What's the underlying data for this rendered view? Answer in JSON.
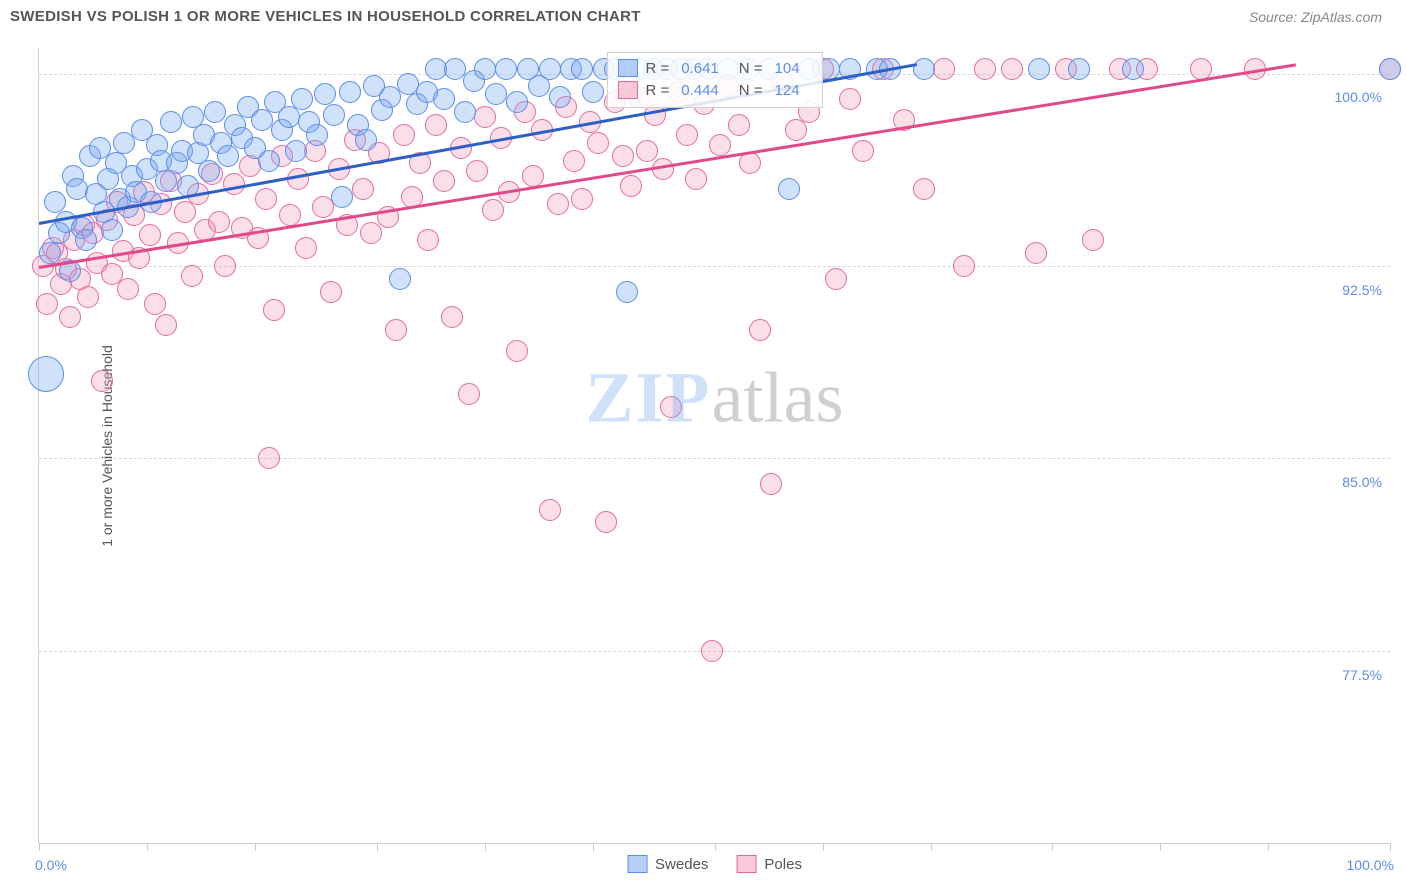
{
  "header": {
    "title": "SWEDISH VS POLISH 1 OR MORE VEHICLES IN HOUSEHOLD CORRELATION CHART",
    "source_prefix": "Source: ",
    "source_link": "ZipAtlas.com"
  },
  "chart": {
    "type": "scatter",
    "ylabel": "1 or more Vehicles in Household",
    "background_color": "#ffffff",
    "grid_color": "#d8d8d8",
    "xlim": [
      0,
      100
    ],
    "ylim": [
      70,
      101
    ],
    "yticks": [
      {
        "value": 100.0,
        "label": "100.0%"
      },
      {
        "value": 92.5,
        "label": "92.5%"
      },
      {
        "value": 85.0,
        "label": "85.0%"
      },
      {
        "value": 77.5,
        "label": "77.5%"
      }
    ],
    "xticks_minor": [
      0,
      8,
      16,
      25,
      33,
      41,
      50,
      58,
      66,
      75,
      83,
      91,
      100
    ],
    "x_range_labels": {
      "left": "0.0%",
      "right": "100.0%"
    },
    "marker_radius": 11,
    "watermark": {
      "part1": "ZIP",
      "part2": "atlas"
    },
    "series": {
      "swedes": {
        "label": "Swedes",
        "fill_color": "#78aaf0",
        "stroke_color": "#5b8def",
        "R": "0.641",
        "N": "104",
        "trend": {
          "x1": 0,
          "y1": 94.2,
          "x2": 65,
          "y2": 100.4,
          "color": "#2d5fc4"
        },
        "points": [
          {
            "x": 0.5,
            "y": 88.3,
            "r": 18
          },
          {
            "x": 0.8,
            "y": 93.0
          },
          {
            "x": 1.2,
            "y": 95.0
          },
          {
            "x": 1.5,
            "y": 93.8
          },
          {
            "x": 2.0,
            "y": 94.2
          },
          {
            "x": 2.3,
            "y": 92.3
          },
          {
            "x": 2.5,
            "y": 96.0
          },
          {
            "x": 2.8,
            "y": 95.5
          },
          {
            "x": 3.2,
            "y": 94.0
          },
          {
            "x": 3.5,
            "y": 93.5
          },
          {
            "x": 3.8,
            "y": 96.8
          },
          {
            "x": 4.2,
            "y": 95.3
          },
          {
            "x": 4.5,
            "y": 97.1
          },
          {
            "x": 4.8,
            "y": 94.6
          },
          {
            "x": 5.1,
            "y": 95.9
          },
          {
            "x": 5.4,
            "y": 93.9
          },
          {
            "x": 5.7,
            "y": 96.5
          },
          {
            "x": 6.0,
            "y": 95.1
          },
          {
            "x": 6.3,
            "y": 97.3
          },
          {
            "x": 6.6,
            "y": 94.8
          },
          {
            "x": 6.9,
            "y": 96.0
          },
          {
            "x": 7.2,
            "y": 95.4
          },
          {
            "x": 7.6,
            "y": 97.8
          },
          {
            "x": 8.0,
            "y": 96.3
          },
          {
            "x": 8.3,
            "y": 95.0
          },
          {
            "x": 8.7,
            "y": 97.2
          },
          {
            "x": 9.0,
            "y": 96.6
          },
          {
            "x": 9.4,
            "y": 95.8
          },
          {
            "x": 9.8,
            "y": 98.1
          },
          {
            "x": 10.2,
            "y": 96.5
          },
          {
            "x": 10.6,
            "y": 97.0
          },
          {
            "x": 11.0,
            "y": 95.6
          },
          {
            "x": 11.4,
            "y": 98.3
          },
          {
            "x": 11.8,
            "y": 96.9
          },
          {
            "x": 12.2,
            "y": 97.6
          },
          {
            "x": 12.6,
            "y": 96.2
          },
          {
            "x": 13.0,
            "y": 98.5
          },
          {
            "x": 13.5,
            "y": 97.3
          },
          {
            "x": 14.0,
            "y": 96.8
          },
          {
            "x": 14.5,
            "y": 98.0
          },
          {
            "x": 15.0,
            "y": 97.5
          },
          {
            "x": 15.5,
            "y": 98.7
          },
          {
            "x": 16.0,
            "y": 97.1
          },
          {
            "x": 16.5,
            "y": 98.2
          },
          {
            "x": 17.0,
            "y": 96.6
          },
          {
            "x": 17.5,
            "y": 98.9
          },
          {
            "x": 18.0,
            "y": 97.8
          },
          {
            "x": 18.5,
            "y": 98.3
          },
          {
            "x": 19.0,
            "y": 97.0
          },
          {
            "x": 19.5,
            "y": 99.0
          },
          {
            "x": 20.0,
            "y": 98.1
          },
          {
            "x": 20.6,
            "y": 97.6
          },
          {
            "x": 21.2,
            "y": 99.2
          },
          {
            "x": 21.8,
            "y": 98.4
          },
          {
            "x": 22.4,
            "y": 95.2
          },
          {
            "x": 23.0,
            "y": 99.3
          },
          {
            "x": 23.6,
            "y": 98.0
          },
          {
            "x": 24.2,
            "y": 97.4
          },
          {
            "x": 24.8,
            "y": 99.5
          },
          {
            "x": 25.4,
            "y": 98.6
          },
          {
            "x": 26.0,
            "y": 99.1
          },
          {
            "x": 26.7,
            "y": 92.0
          },
          {
            "x": 27.3,
            "y": 99.6
          },
          {
            "x": 28.0,
            "y": 98.8
          },
          {
            "x": 28.7,
            "y": 99.3
          },
          {
            "x": 29.4,
            "y": 100.2
          },
          {
            "x": 30.0,
            "y": 99.0
          },
          {
            "x": 30.8,
            "y": 100.2
          },
          {
            "x": 31.5,
            "y": 98.5
          },
          {
            "x": 32.2,
            "y": 99.7
          },
          {
            "x": 33.0,
            "y": 100.2
          },
          {
            "x": 33.8,
            "y": 99.2
          },
          {
            "x": 34.6,
            "y": 100.2
          },
          {
            "x": 35.4,
            "y": 98.9
          },
          {
            "x": 36.2,
            "y": 100.2
          },
          {
            "x": 37.0,
            "y": 99.5
          },
          {
            "x": 37.8,
            "y": 100.2
          },
          {
            "x": 38.6,
            "y": 99.1
          },
          {
            "x": 39.4,
            "y": 100.2
          },
          {
            "x": 40.2,
            "y": 100.2
          },
          {
            "x": 41.0,
            "y": 99.3
          },
          {
            "x": 41.8,
            "y": 100.2
          },
          {
            "x": 42.6,
            "y": 100.2
          },
          {
            "x": 43.5,
            "y": 91.5
          },
          {
            "x": 44.5,
            "y": 100.2
          },
          {
            "x": 45.5,
            "y": 100.2
          },
          {
            "x": 46.5,
            "y": 100.2
          },
          {
            "x": 47.5,
            "y": 100.2
          },
          {
            "x": 48.5,
            "y": 100.2
          },
          {
            "x": 49.5,
            "y": 100.2
          },
          {
            "x": 51.0,
            "y": 100.2
          },
          {
            "x": 52.5,
            "y": 100.2
          },
          {
            "x": 54.0,
            "y": 100.2
          },
          {
            "x": 55.5,
            "y": 95.5
          },
          {
            "x": 57.0,
            "y": 100.2
          },
          {
            "x": 58.5,
            "y": 100.2
          },
          {
            "x": 60.0,
            "y": 100.2
          },
          {
            "x": 62.0,
            "y": 100.2
          },
          {
            "x": 63.0,
            "y": 100.2
          },
          {
            "x": 65.5,
            "y": 100.2
          },
          {
            "x": 74.0,
            "y": 100.2
          },
          {
            "x": 77.0,
            "y": 100.2
          },
          {
            "x": 81.0,
            "y": 100.2
          },
          {
            "x": 100.0,
            "y": 100.2
          }
        ]
      },
      "poles": {
        "label": "Poles",
        "fill_color": "#f096b4",
        "stroke_color": "#e86aa0",
        "R": "0.444",
        "N": "124",
        "trend": {
          "x1": 0,
          "y1": 92.5,
          "x2": 93,
          "y2": 100.4,
          "color": "#e04a88"
        },
        "points": [
          {
            "x": 0.3,
            "y": 92.5
          },
          {
            "x": 0.6,
            "y": 91.0
          },
          {
            "x": 1.0,
            "y": 93.2
          },
          {
            "x": 1.3,
            "y": 93.0
          },
          {
            "x": 1.6,
            "y": 91.8
          },
          {
            "x": 2.0,
            "y": 92.4
          },
          {
            "x": 2.3,
            "y": 90.5
          },
          {
            "x": 2.6,
            "y": 93.5
          },
          {
            "x": 3.0,
            "y": 92.0
          },
          {
            "x": 3.3,
            "y": 94.1
          },
          {
            "x": 3.6,
            "y": 91.3
          },
          {
            "x": 4.0,
            "y": 93.8
          },
          {
            "x": 4.3,
            "y": 92.6
          },
          {
            "x": 4.7,
            "y": 88.0
          },
          {
            "x": 5.0,
            "y": 94.3
          },
          {
            "x": 5.4,
            "y": 92.2
          },
          {
            "x": 5.8,
            "y": 95.0
          },
          {
            "x": 6.2,
            "y": 93.1
          },
          {
            "x": 6.6,
            "y": 91.6
          },
          {
            "x": 7.0,
            "y": 94.5
          },
          {
            "x": 7.4,
            "y": 92.8
          },
          {
            "x": 7.8,
            "y": 95.4
          },
          {
            "x": 8.2,
            "y": 93.7
          },
          {
            "x": 8.6,
            "y": 91.0
          },
          {
            "x": 9.0,
            "y": 94.9
          },
          {
            "x": 9.4,
            "y": 90.2
          },
          {
            "x": 9.8,
            "y": 95.8
          },
          {
            "x": 10.3,
            "y": 93.4
          },
          {
            "x": 10.8,
            "y": 94.6
          },
          {
            "x": 11.3,
            "y": 92.1
          },
          {
            "x": 11.8,
            "y": 95.3
          },
          {
            "x": 12.3,
            "y": 93.9
          },
          {
            "x": 12.8,
            "y": 96.1
          },
          {
            "x": 13.3,
            "y": 94.2
          },
          {
            "x": 13.8,
            "y": 92.5
          },
          {
            "x": 14.4,
            "y": 95.7
          },
          {
            "x": 15.0,
            "y": 94.0
          },
          {
            "x": 15.6,
            "y": 96.4
          },
          {
            "x": 16.2,
            "y": 93.6
          },
          {
            "x": 16.8,
            "y": 95.1
          },
          {
            "x": 17.0,
            "y": 85.0
          },
          {
            "x": 17.4,
            "y": 90.8
          },
          {
            "x": 18.0,
            "y": 96.8
          },
          {
            "x": 18.6,
            "y": 94.5
          },
          {
            "x": 19.2,
            "y": 95.9
          },
          {
            "x": 19.8,
            "y": 93.2
          },
          {
            "x": 20.4,
            "y": 97.0
          },
          {
            "x": 21.0,
            "y": 94.8
          },
          {
            "x": 21.6,
            "y": 91.5
          },
          {
            "x": 22.2,
            "y": 96.3
          },
          {
            "x": 22.8,
            "y": 94.1
          },
          {
            "x": 23.4,
            "y": 97.4
          },
          {
            "x": 24.0,
            "y": 95.5
          },
          {
            "x": 24.6,
            "y": 93.8
          },
          {
            "x": 25.2,
            "y": 96.9
          },
          {
            "x": 25.8,
            "y": 94.4
          },
          {
            "x": 26.4,
            "y": 90.0
          },
          {
            "x": 27.0,
            "y": 97.6
          },
          {
            "x": 27.6,
            "y": 95.2
          },
          {
            "x": 28.2,
            "y": 96.5
          },
          {
            "x": 28.8,
            "y": 93.5
          },
          {
            "x": 29.4,
            "y": 98.0
          },
          {
            "x": 30.0,
            "y": 95.8
          },
          {
            "x": 30.6,
            "y": 90.5
          },
          {
            "x": 31.2,
            "y": 97.1
          },
          {
            "x": 31.8,
            "y": 87.5
          },
          {
            "x": 32.4,
            "y": 96.2
          },
          {
            "x": 33.0,
            "y": 98.3
          },
          {
            "x": 33.6,
            "y": 94.7
          },
          {
            "x": 34.2,
            "y": 97.5
          },
          {
            "x": 34.8,
            "y": 95.4
          },
          {
            "x": 35.4,
            "y": 89.2
          },
          {
            "x": 36.0,
            "y": 98.5
          },
          {
            "x": 36.6,
            "y": 96.0
          },
          {
            "x": 37.2,
            "y": 97.8
          },
          {
            "x": 37.8,
            "y": 83.0
          },
          {
            "x": 38.4,
            "y": 94.9
          },
          {
            "x": 39.0,
            "y": 98.7
          },
          {
            "x": 39.6,
            "y": 96.6
          },
          {
            "x": 40.2,
            "y": 95.1
          },
          {
            "x": 40.8,
            "y": 98.1
          },
          {
            "x": 41.4,
            "y": 97.3
          },
          {
            "x": 42.0,
            "y": 82.5
          },
          {
            "x": 42.6,
            "y": 98.9
          },
          {
            "x": 43.2,
            "y": 96.8
          },
          {
            "x": 43.8,
            "y": 95.6
          },
          {
            "x": 44.4,
            "y": 99.1
          },
          {
            "x": 45.0,
            "y": 97.0
          },
          {
            "x": 45.6,
            "y": 98.4
          },
          {
            "x": 46.2,
            "y": 96.3
          },
          {
            "x": 46.8,
            "y": 87.0
          },
          {
            "x": 47.4,
            "y": 99.3
          },
          {
            "x": 48.0,
            "y": 97.6
          },
          {
            "x": 48.6,
            "y": 95.9
          },
          {
            "x": 49.2,
            "y": 98.8
          },
          {
            "x": 49.8,
            "y": 77.5
          },
          {
            "x": 50.4,
            "y": 97.2
          },
          {
            "x": 51.0,
            "y": 99.5
          },
          {
            "x": 51.8,
            "y": 98.0
          },
          {
            "x": 52.6,
            "y": 96.5
          },
          {
            "x": 53.4,
            "y": 90.0
          },
          {
            "x": 54.2,
            "y": 84.0
          },
          {
            "x": 55.0,
            "y": 99.7
          },
          {
            "x": 56.0,
            "y": 97.8
          },
          {
            "x": 57.0,
            "y": 98.5
          },
          {
            "x": 58.0,
            "y": 100.2
          },
          {
            "x": 59.0,
            "y": 92.0
          },
          {
            "x": 60.0,
            "y": 99.0
          },
          {
            "x": 61.0,
            "y": 97.0
          },
          {
            "x": 62.5,
            "y": 100.2
          },
          {
            "x": 64.0,
            "y": 98.2
          },
          {
            "x": 65.5,
            "y": 95.5
          },
          {
            "x": 67.0,
            "y": 100.2
          },
          {
            "x": 68.5,
            "y": 92.5
          },
          {
            "x": 70.0,
            "y": 100.2
          },
          {
            "x": 72.0,
            "y": 100.2
          },
          {
            "x": 73.8,
            "y": 93.0
          },
          {
            "x": 76.0,
            "y": 100.2
          },
          {
            "x": 78.0,
            "y": 93.5
          },
          {
            "x": 80.0,
            "y": 100.2
          },
          {
            "x": 82.0,
            "y": 100.2
          },
          {
            "x": 86.0,
            "y": 100.2
          },
          {
            "x": 90.0,
            "y": 100.2
          },
          {
            "x": 100.0,
            "y": 100.2
          }
        ]
      }
    },
    "bottom_legend": [
      {
        "key": "swedes",
        "label": "Swedes"
      },
      {
        "key": "poles",
        "label": "Poles"
      }
    ],
    "stats_legend": {
      "r_label": "R =",
      "n_label": "N ="
    }
  }
}
